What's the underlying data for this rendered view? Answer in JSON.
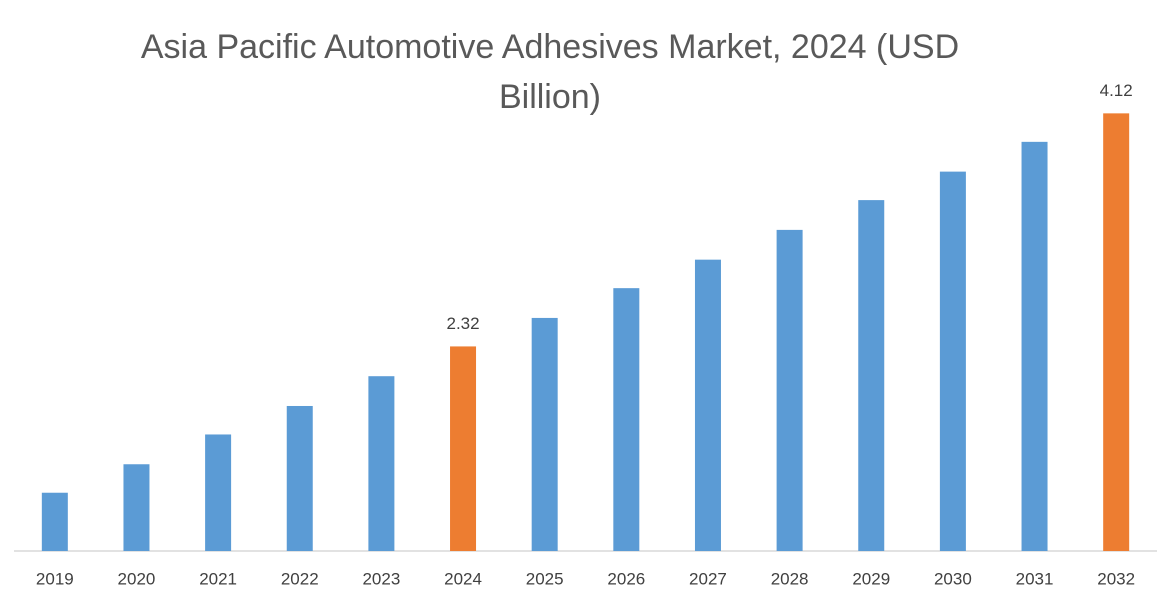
{
  "chart_data": {
    "type": "bar",
    "title": "Asia Pacific Automotive Adhesives Market, 2024 (USD Billion)",
    "categories": [
      "2019",
      "2020",
      "2021",
      "2022",
      "2023",
      "2024",
      "2025",
      "2026",
      "2027",
      "2028",
      "2029",
      "2030",
      "2031",
      "2032"
    ],
    "values": [
      1.19,
      1.41,
      1.64,
      1.86,
      2.09,
      2.32,
      2.54,
      2.77,
      2.99,
      3.22,
      3.45,
      3.67,
      3.9,
      4.12
    ],
    "value_labels": [
      null,
      null,
      null,
      null,
      null,
      "2.32",
      null,
      null,
      null,
      null,
      null,
      null,
      null,
      "4.12"
    ],
    "colors": [
      "#5b9bd5",
      "#5b9bd5",
      "#5b9bd5",
      "#5b9bd5",
      "#5b9bd5",
      "#ed7d31",
      "#5b9bd5",
      "#5b9bd5",
      "#5b9bd5",
      "#5b9bd5",
      "#5b9bd5",
      "#5b9bd5",
      "#5b9bd5",
      "#ed7d31"
    ],
    "ylim": [
      0.74,
      4.2
    ]
  }
}
